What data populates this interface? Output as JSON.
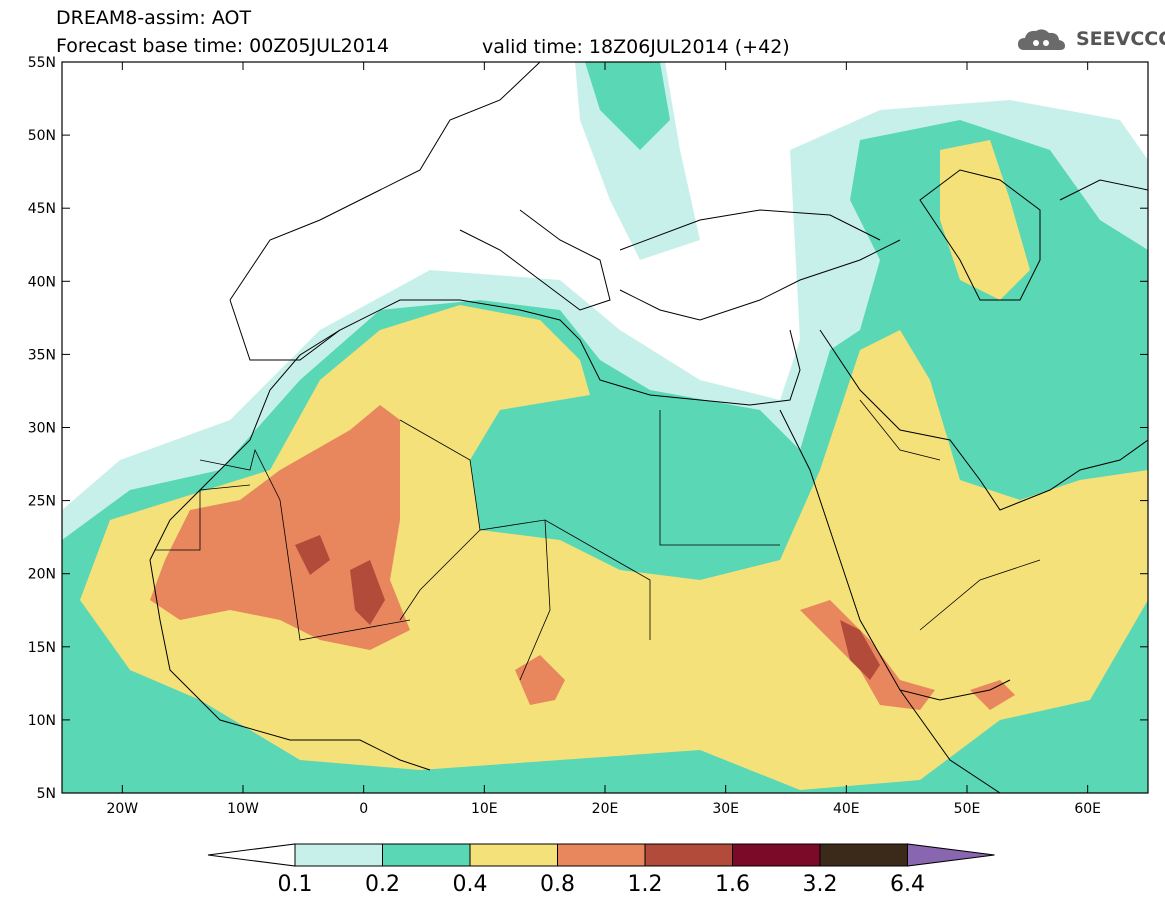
{
  "header": {
    "title_line1": "DREAM8-assim: AOT",
    "title_line2": "Forecast base time: 00Z05JUL2014",
    "valid_time": "valid time: 18Z06JUL2014 (+42)",
    "logo_text": "SEEVCCC",
    "logo_icon": "cloud-icon"
  },
  "map": {
    "lat_labels": [
      "55N",
      "50N",
      "45N",
      "40N",
      "35N",
      "30N",
      "25N",
      "20N",
      "15N",
      "10N",
      "5N"
    ],
    "lon_labels": [
      "20W",
      "10W",
      "0",
      "10E",
      "20E",
      "30E",
      "40E",
      "50E",
      "60E"
    ],
    "lat_range": [
      5,
      55
    ],
    "lon_range": [
      -25,
      65
    ],
    "variable": "AOT"
  },
  "colorbar": {
    "labels": [
      "0.1",
      "0.2",
      "0.4",
      "0.8",
      "1.2",
      "1.6",
      "3.2",
      "6.4"
    ],
    "colors": [
      "#c8f0ea",
      "#5ad7b4",
      "#f5e17a",
      "#e8875e",
      "#b24b3a",
      "#7a0a28",
      "#3b2a1a",
      "#8866b0"
    ],
    "below_color": "#ffffff"
  }
}
